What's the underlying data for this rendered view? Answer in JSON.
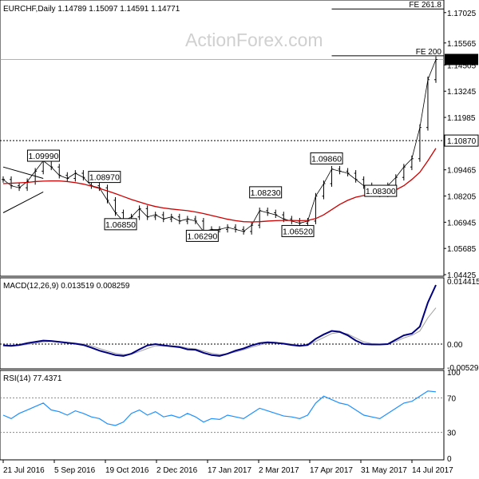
{
  "chart_data": [
    {
      "type": "line",
      "panel": "price",
      "title": "EURCHF,Daily  1.14789 1.15097 1.14591 1.14771",
      "watermark": "ActionForex.com",
      "y_ticks": [
        1.17025,
        1.15565,
        1.14505,
        1.13245,
        1.11985,
        1.1087,
        1.09465,
        1.08205,
        1.06945,
        1.05685,
        1.04425
      ],
      "y_tick_labels": [
        "1.17025",
        "1.15565",
        "1.14505",
        "1.13245",
        "1.11985",
        "1.09465",
        "1.08205",
        "1.06945",
        "1.05685",
        "1.04425"
      ],
      "ylim": [
        1.04425,
        1.174
      ],
      "current_price_label": "1.14771",
      "current_price": 1.14771,
      "support_level_label": "1.10870",
      "support_level": 1.1087,
      "fib_levels": [
        {
          "label": "FE 261.8",
          "value": 1.172
        },
        {
          "label": "FE 200",
          "value": 1.1495
        }
      ],
      "annotations": [
        {
          "label": "1.09990",
          "value": 1.0999,
          "date": "2016-08-25"
        },
        {
          "label": "1.08970",
          "value": 1.0897,
          "date": "2016-10-17"
        },
        {
          "label": "1.06850",
          "value": 1.0685,
          "date": "2016-10-31"
        },
        {
          "label": "1.06290",
          "value": 1.0629,
          "date": "2017-01-10"
        },
        {
          "label": "1.08230",
          "value": 1.0823,
          "date": "2017-03-06"
        },
        {
          "label": "1.06520",
          "value": 1.0652,
          "date": "2017-04-03"
        },
        {
          "label": "1.09860",
          "value": 1.0986,
          "date": "2017-04-28"
        },
        {
          "label": "1.08300",
          "value": 1.083,
          "date": "2017-06-14"
        }
      ],
      "series": [
        {
          "kind": "ohlc",
          "x": [
            "2016-07-21",
            "2016-07-28",
            "2016-08-04",
            "2016-08-11",
            "2016-08-18",
            "2016-08-25",
            "2016-09-01",
            "2016-09-08",
            "2016-09-15",
            "2016-09-22",
            "2016-09-29",
            "2016-10-06",
            "2016-10-13",
            "2016-10-20",
            "2016-10-27",
            "2016-11-03",
            "2016-11-10",
            "2016-11-17",
            "2016-11-24",
            "2016-12-01",
            "2016-12-08",
            "2016-12-15",
            "2016-12-22",
            "2016-12-29",
            "2017-01-05",
            "2017-01-12",
            "2017-01-19",
            "2017-01-26",
            "2017-02-02",
            "2017-02-09",
            "2017-02-16",
            "2017-02-23",
            "2017-03-02",
            "2017-03-09",
            "2017-03-16",
            "2017-03-23",
            "2017-03-30",
            "2017-04-06",
            "2017-04-13",
            "2017-04-20",
            "2017-04-27",
            "2017-05-04",
            "2017-05-11",
            "2017-05-18",
            "2017-05-25",
            "2017-06-01",
            "2017-06-08",
            "2017-06-15",
            "2017-06-22",
            "2017-06-29",
            "2017-07-06",
            "2017-07-13",
            "2017-07-20",
            "2017-07-27",
            "2017-08-01"
          ],
          "values": [
            1.09,
            1.087,
            1.086,
            1.089,
            1.094,
            1.099,
            1.096,
            1.092,
            1.0905,
            1.093,
            1.091,
            1.087,
            1.086,
            1.08,
            1.074,
            1.07,
            1.072,
            1.076,
            1.072,
            1.073,
            1.071,
            1.072,
            1.07,
            1.071,
            1.07,
            1.065,
            1.066,
            1.066,
            1.067,
            1.066,
            1.065,
            1.068,
            1.075,
            1.074,
            1.073,
            1.071,
            1.07,
            1.069,
            1.07,
            1.082,
            1.088,
            1.095,
            1.094,
            1.093,
            1.09,
            1.087,
            1.085,
            1.083,
            1.087,
            1.091,
            1.096,
            1.1,
            1.115,
            1.138,
            1.1477
          ]
        },
        {
          "kind": "moving-average",
          "values": [
            1.088,
            1.0882,
            1.0884,
            1.0886,
            1.089,
            1.0892,
            1.0893,
            1.0893,
            1.089,
            1.0885,
            1.0878,
            1.0868,
            1.0857,
            1.0845,
            1.0832,
            1.0818,
            1.0804,
            1.0792,
            1.078,
            1.077,
            1.0763,
            1.0758,
            1.0754,
            1.075,
            1.0744,
            1.0736,
            1.0727,
            1.0718,
            1.0709,
            1.0702,
            1.0697,
            1.0696,
            1.0697,
            1.07,
            1.0702,
            1.0703,
            1.0703,
            1.0702,
            1.0703,
            1.0712,
            1.073,
            1.0755,
            1.078,
            1.08,
            1.0815,
            1.0823,
            1.0826,
            1.083,
            1.0838,
            1.085,
            1.087,
            1.09,
            1.0935,
            1.099,
            1.105
          ]
        }
      ]
    },
    {
      "type": "line",
      "panel": "macd",
      "title": "MACD(12,26,9) 0.013519 0.008259",
      "y_tick_labels": [
        "0.014415",
        "0.00",
        "-0.00529"
      ],
      "ylim": [
        -0.00529,
        0.014415
      ],
      "series": [
        {
          "kind": "macd-line",
          "values": [
            -0.0003,
            -0.0004,
            -0.0002,
            0.0002,
            0.0005,
            0.0008,
            0.0007,
            0.0005,
            0.0003,
            0.0001,
            -0.0002,
            -0.0008,
            -0.0015,
            -0.002,
            -0.0025,
            -0.0027,
            -0.0022,
            -0.0012,
            -0.0003,
            0.0,
            -0.0003,
            -0.0005,
            -0.0007,
            -0.0012,
            -0.0013,
            -0.002,
            -0.0025,
            -0.0027,
            -0.0022,
            -0.0015,
            -0.001,
            -0.0003,
            0.0002,
            0.0004,
            0.0003,
            0.0001,
            -0.0002,
            -0.0004,
            -0.0002,
            0.0012,
            0.0022,
            0.003,
            0.0028,
            0.002,
            0.0008,
            0.0,
            -0.0001,
            -0.0001,
            0.0,
            0.001,
            0.002,
            0.0024,
            0.004,
            0.0095,
            0.0135
          ]
        },
        {
          "kind": "signal-line",
          "values": [
            -0.0002,
            -0.0003,
            -0.0003,
            -0.0001,
            0.0002,
            0.0005,
            0.0006,
            0.0006,
            0.0004,
            0.0002,
            0.0,
            -0.0004,
            -0.001,
            -0.0016,
            -0.0021,
            -0.0024,
            -0.0023,
            -0.0017,
            -0.001,
            -0.0004,
            -0.0004,
            -0.0004,
            -0.0005,
            -0.0009,
            -0.0011,
            -0.0016,
            -0.0021,
            -0.0024,
            -0.0022,
            -0.0018,
            -0.0013,
            -0.0007,
            -0.0002,
            0.0002,
            0.0003,
            0.0002,
            0.0,
            -0.0003,
            -0.0003,
            0.0006,
            0.0015,
            0.0024,
            0.0027,
            0.0023,
            0.0014,
            0.0005,
            0.0001,
            0.0,
            0.0,
            0.0006,
            0.0014,
            0.002,
            0.003,
            0.006,
            0.0083
          ]
        }
      ]
    },
    {
      "type": "line",
      "panel": "rsi",
      "title": "RSI(14) 77.4371",
      "y_tick_labels": [
        "100",
        "70",
        "30",
        "0"
      ],
      "ylim": [
        0,
        100
      ],
      "levels": [
        70,
        30
      ],
      "series": [
        {
          "kind": "rsi",
          "values": [
            50,
            46,
            52,
            56,
            60,
            64,
            56,
            54,
            50,
            55,
            52,
            48,
            46,
            40,
            38,
            42,
            52,
            56,
            50,
            54,
            48,
            50,
            47,
            52,
            48,
            42,
            46,
            45,
            50,
            48,
            46,
            52,
            58,
            55,
            52,
            49,
            48,
            46,
            50,
            64,
            72,
            68,
            64,
            62,
            56,
            50,
            48,
            46,
            52,
            58,
            64,
            66,
            72,
            78,
            77
          ]
        }
      ]
    }
  ],
  "x_axis": {
    "tick_labels": [
      "21 Jul 2016",
      "5 Sep 2016",
      "19 Oct 2016",
      "2 Dec 2016",
      "17 Jan 2017",
      "2 Mar 2017",
      "17 Apr 2017",
      "31 May 2017",
      "14 Jul 2017"
    ]
  },
  "colors": {
    "price": "#000000",
    "moving_average": "#cc0000",
    "macd_line": "#000080",
    "signal_line": "#a0a0a0",
    "rsi_line": "#1e90ff",
    "support_line": "#000000",
    "fib_line": "#000000"
  }
}
